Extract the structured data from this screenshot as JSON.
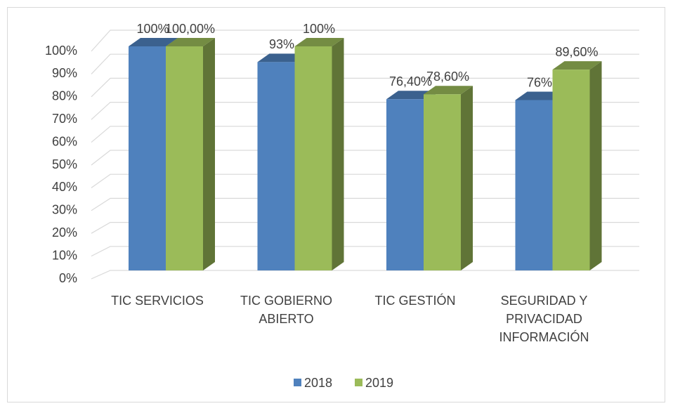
{
  "chart_data": {
    "type": "bar3d",
    "categories": [
      "TIC SERVICIOS",
      "TIC GOBIERNO ABIERTO",
      "TIC GESTIÓN",
      "SEGURIDAD Y PRIVACIDAD INFORMACIÓN"
    ],
    "series": [
      {
        "name": "2018",
        "color": "#4f81bd",
        "values": [
          100,
          93,
          76.4,
          76
        ],
        "value_labels": [
          "100%",
          "93%",
          "76,40%",
          "76%"
        ]
      },
      {
        "name": "2019",
        "color": "#9bbb59",
        "values": [
          100,
          100,
          78.6,
          89.6
        ],
        "value_labels": [
          "100,00%",
          "100%",
          "78,60%",
          "89,60%"
        ]
      }
    ],
    "ylim": [
      0,
      100
    ],
    "yticks": [
      {
        "value": 0,
        "label": "0%"
      },
      {
        "value": 10,
        "label": "10%"
      },
      {
        "value": 20,
        "label": "20%"
      },
      {
        "value": 30,
        "label": "30%"
      },
      {
        "value": 40,
        "label": "40%"
      },
      {
        "value": 50,
        "label": "50%"
      },
      {
        "value": 60,
        "label": "60%"
      },
      {
        "value": 70,
        "label": "70%"
      },
      {
        "value": 80,
        "label": "80%"
      },
      {
        "value": 90,
        "label": "90%"
      },
      {
        "value": 100,
        "label": "100%"
      }
    ],
    "grid": true,
    "legend": "bottom"
  }
}
